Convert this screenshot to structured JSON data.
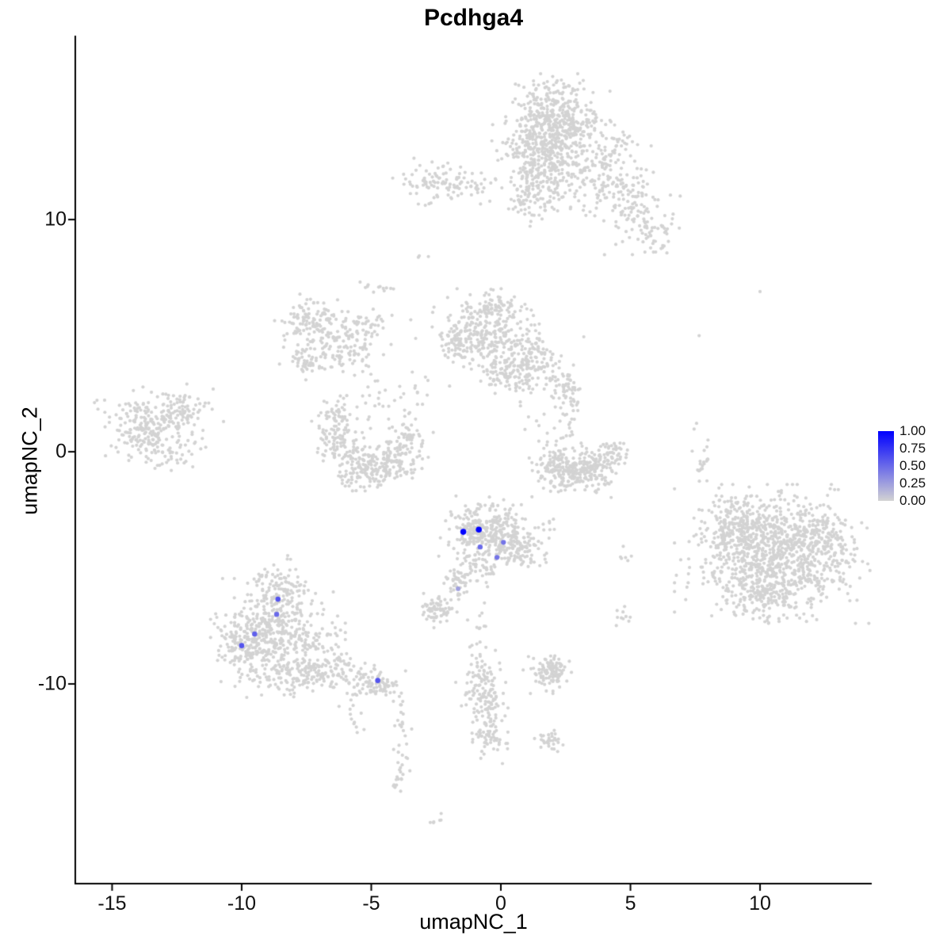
{
  "title": "Pcdhga4",
  "axes": {
    "x_label": "umapNC_1",
    "y_label": "umapNC_2",
    "x_ticks": [
      -15,
      -10,
      -5,
      0,
      5,
      10
    ],
    "x_tick_labels": [
      "-15",
      "-10",
      "-5",
      "0",
      "5",
      "10"
    ],
    "y_ticks": [
      -10,
      0,
      10
    ],
    "y_tick_labels": [
      "-10",
      "0",
      "10"
    ]
  },
  "legend": {
    "labels": [
      "1.00",
      "0.75",
      "0.50",
      "0.25",
      "0.00"
    ],
    "high_color": "#0000FF",
    "low_color": "#D3D3D3"
  },
  "chart_data": {
    "type": "scatter",
    "title": "Pcdhga4",
    "xlabel": "umapNC_1",
    "ylabel": "umapNC_2",
    "xlim": [
      -16.42,
      14.31
    ],
    "ylim": [
      -18.6,
      17.92
    ],
    "grid": false,
    "legend_position": "right",
    "point_color": "#D3D3D3",
    "highlight_low_color": "#D3D3D3",
    "highlight_high_color": "#0000FF",
    "seed": 42,
    "clusters": [
      {
        "name": "top-main-core",
        "cx": 2.0,
        "cy": 14.2,
        "sx": 0.85,
        "sy": 0.8,
        "n": 480
      },
      {
        "name": "top-main-lower",
        "cx": 1.55,
        "cy": 12.4,
        "sx": 0.75,
        "sy": 0.85,
        "n": 260
      },
      {
        "name": "top-neck",
        "cx": 1.25,
        "cy": 10.9,
        "sx": 0.4,
        "sy": 0.5,
        "n": 70
      },
      {
        "name": "top-right-arm",
        "cx": 3.9,
        "cy": 11.9,
        "sx": 0.85,
        "sy": 0.8,
        "n": 150
      },
      {
        "name": "top-right-sparse",
        "cx": 5.1,
        "cy": 10.4,
        "sx": 0.7,
        "sy": 0.8,
        "n": 90
      },
      {
        "name": "top-right-tip",
        "cx": 5.9,
        "cy": 9.4,
        "sx": 0.45,
        "sy": 0.5,
        "n": 40
      },
      {
        "name": "top-right-upper",
        "cx": 4.5,
        "cy": 13.1,
        "sx": 0.5,
        "sy": 0.5,
        "n": 30
      },
      {
        "name": "top-left-blob",
        "cx": -2.5,
        "cy": 11.6,
        "sx": 0.75,
        "sy": 0.4,
        "n": 90
      },
      {
        "name": "top-left-bridge",
        "cx": -1.0,
        "cy": 11.3,
        "sx": 0.4,
        "sy": 0.3,
        "n": 25
      },
      {
        "name": "mid-upper-dots",
        "cx": -4.7,
        "cy": 7.1,
        "sx": 0.3,
        "sy": 0.25,
        "n": 12
      },
      {
        "name": "pair-dots",
        "cx": -3.0,
        "cy": 8.4,
        "sx": 0.15,
        "sy": 0.1,
        "n": 3
      },
      {
        "name": "left-ring-a",
        "cx": -7.3,
        "cy": 5.6,
        "sx": 0.55,
        "sy": 0.5,
        "n": 120
      },
      {
        "name": "left-ring-b",
        "cx": -6.1,
        "cy": 4.6,
        "sx": 0.5,
        "sy": 0.55,
        "n": 100
      },
      {
        "name": "left-ring-c",
        "cx": -7.5,
        "cy": 3.9,
        "sx": 0.4,
        "sy": 0.35,
        "n": 50
      },
      {
        "name": "left-ring-d",
        "cx": -5.2,
        "cy": 5.4,
        "sx": 0.45,
        "sy": 0.3,
        "n": 40
      },
      {
        "name": "center-sparse-trail",
        "cx": -4.2,
        "cy": 2.3,
        "sx": 1.0,
        "sy": 1.3,
        "n": 55
      },
      {
        "name": "center-top-main",
        "cx": -0.6,
        "cy": 5.2,
        "sx": 0.8,
        "sy": 0.7,
        "n": 280
      },
      {
        "name": "center-top-right",
        "cx": 1.1,
        "cy": 3.9,
        "sx": 0.6,
        "sy": 0.6,
        "n": 160
      },
      {
        "name": "center-top-lower",
        "cx": 0.1,
        "cy": 3.3,
        "sx": 0.5,
        "sy": 0.4,
        "n": 70
      },
      {
        "name": "center-top-left-tail",
        "cx": -1.9,
        "cy": 4.5,
        "sx": 0.35,
        "sy": 0.4,
        "n": 40
      },
      {
        "name": "center-top-upper",
        "cx": -0.2,
        "cy": 6.3,
        "sx": 0.6,
        "sy": 0.35,
        "n": 40
      },
      {
        "name": "midleft-crescent-a",
        "cx": -6.2,
        "cy": 0.6,
        "sx": 0.45,
        "sy": 0.7,
        "n": 110
      },
      {
        "name": "midleft-crescent-b",
        "cx": -5.3,
        "cy": -0.6,
        "sx": 0.55,
        "sy": 0.45,
        "n": 130
      },
      {
        "name": "midleft-crescent-c",
        "cx": -4.1,
        "cy": -0.55,
        "sx": 0.5,
        "sy": 0.4,
        "n": 100
      },
      {
        "name": "midleft-crescent-tip",
        "cx": -3.5,
        "cy": 0.6,
        "sx": 0.3,
        "sy": 0.4,
        "n": 40
      },
      {
        "name": "midleft-crescent-tip2",
        "cx": -6.6,
        "cy": 1.6,
        "sx": 0.3,
        "sy": 0.3,
        "n": 30
      },
      {
        "name": "far-left-main",
        "cx": -13.6,
        "cy": 1.1,
        "sx": 0.8,
        "sy": 0.65,
        "n": 220
      },
      {
        "name": "far-left-right",
        "cx": -12.3,
        "cy": 1.7,
        "sx": 0.5,
        "sy": 0.5,
        "n": 70
      },
      {
        "name": "far-left-bottom",
        "cx": -13.1,
        "cy": -0.1,
        "sx": 0.7,
        "sy": 0.35,
        "n": 40
      },
      {
        "name": "right-string",
        "cx": 2.6,
        "cy": 1.7,
        "sx": 0.3,
        "sy": 0.9,
        "n": 50
      },
      {
        "name": "right-string-top",
        "cx": 2.45,
        "cy": 2.9,
        "sx": 0.3,
        "sy": 0.3,
        "n": 30
      },
      {
        "name": "right-crescent-a",
        "cx": 2.5,
        "cy": -0.9,
        "sx": 0.5,
        "sy": 0.4,
        "n": 140
      },
      {
        "name": "right-crescent-b",
        "cx": 3.6,
        "cy": -0.8,
        "sx": 0.5,
        "sy": 0.45,
        "n": 130
      },
      {
        "name": "right-crescent-tip",
        "cx": 4.4,
        "cy": -0.1,
        "sx": 0.25,
        "sy": 0.35,
        "n": 40
      },
      {
        "name": "right-crescent-left",
        "cx": 1.9,
        "cy": -0.3,
        "sx": 0.25,
        "sy": 0.3,
        "n": 40
      },
      {
        "name": "center-right-sparse",
        "cx": 1.5,
        "cy": 1.2,
        "sx": 0.5,
        "sy": 0.8,
        "n": 12
      },
      {
        "name": "big-right-core",
        "cx": 10.6,
        "cy": -4.4,
        "sx": 1.5,
        "sy": 1.15,
        "n": 850
      },
      {
        "name": "big-right-upperleft",
        "cx": 9.2,
        "cy": -3.2,
        "sx": 0.7,
        "sy": 0.7,
        "n": 200
      },
      {
        "name": "big-right-right",
        "cx": 12.2,
        "cy": -3.7,
        "sx": 0.7,
        "sy": 0.7,
        "n": 150
      },
      {
        "name": "big-right-bottom",
        "cx": 10.2,
        "cy": -6.3,
        "sx": 0.9,
        "sy": 0.5,
        "n": 140
      },
      {
        "name": "big-right-top-string",
        "cx": 7.8,
        "cy": -0.3,
        "sx": 0.2,
        "sy": 0.9,
        "n": 22
      },
      {
        "name": "center-main",
        "cx": -0.5,
        "cy": -3.4,
        "sx": 0.75,
        "sy": 0.6,
        "n": 320
      },
      {
        "name": "center-right-lobe",
        "cx": 0.8,
        "cy": -4.2,
        "sx": 0.4,
        "sy": 0.45,
        "n": 90
      },
      {
        "name": "center-bottom",
        "cx": -1.0,
        "cy": -5.0,
        "sx": 0.4,
        "sy": 0.45,
        "n": 70
      },
      {
        "name": "center-tail",
        "cx": -1.7,
        "cy": -5.85,
        "sx": 0.25,
        "sy": 0.35,
        "n": 30
      },
      {
        "name": "center-right-dots",
        "cx": 1.8,
        "cy": -3.4,
        "sx": 0.25,
        "sy": 0.4,
        "n": 10
      },
      {
        "name": "small-left-blob",
        "cx": -2.4,
        "cy": -6.8,
        "sx": 0.35,
        "sy": 0.3,
        "n": 70
      },
      {
        "name": "bottomleft-core",
        "cx": -8.6,
        "cy": -7.8,
        "sx": 1.0,
        "sy": 0.9,
        "n": 430
      },
      {
        "name": "bottomleft-top",
        "cx": -8.6,
        "cy": -5.9,
        "sx": 0.45,
        "sy": 0.55,
        "n": 90
      },
      {
        "name": "bottomleft-left",
        "cx": -9.9,
        "cy": -8.3,
        "sx": 0.5,
        "sy": 0.6,
        "n": 120
      },
      {
        "name": "bottomleft-bottom",
        "cx": -8.3,
        "cy": -9.6,
        "sx": 0.7,
        "sy": 0.4,
        "n": 90
      },
      {
        "name": "bottomleft-armstart",
        "cx": -6.8,
        "cy": -9.3,
        "sx": 0.6,
        "sy": 0.45,
        "n": 90
      },
      {
        "name": "bottomleft-arm",
        "cx": -5.4,
        "cy": -9.9,
        "sx": 0.55,
        "sy": 0.3,
        "n": 55
      },
      {
        "name": "bottomleft-armknot",
        "cx": -4.6,
        "cy": -10.1,
        "sx": 0.3,
        "sy": 0.25,
        "n": 40
      },
      {
        "name": "tail-string",
        "cx": -3.9,
        "cy": -12.3,
        "sx": 0.18,
        "sy": 1.1,
        "n": 32
      },
      {
        "name": "tail-endblob",
        "cx": -3.9,
        "cy": -13.9,
        "sx": 0.15,
        "sy": 0.3,
        "n": 12
      },
      {
        "name": "tail-side-dots",
        "cx": -5.7,
        "cy": -11.3,
        "sx": 0.3,
        "sy": 0.5,
        "n": 14
      },
      {
        "name": "bottom-middle-a",
        "cx": -0.7,
        "cy": -10.5,
        "sx": 0.4,
        "sy": 0.5,
        "n": 85
      },
      {
        "name": "bottom-middle-b",
        "cx": -0.4,
        "cy": -12.0,
        "sx": 0.35,
        "sy": 0.55,
        "n": 80
      },
      {
        "name": "bottom-middle-top",
        "cx": -0.8,
        "cy": -9.3,
        "sx": 0.3,
        "sy": 0.3,
        "n": 25
      },
      {
        "name": "center-lower-string",
        "cx": -0.7,
        "cy": -7.9,
        "sx": 0.25,
        "sy": 0.7,
        "n": 18
      },
      {
        "name": "bottom-right-blob",
        "cx": 1.9,
        "cy": -9.5,
        "sx": 0.4,
        "sy": 0.35,
        "n": 110
      },
      {
        "name": "bottom-right-small",
        "cx": 1.95,
        "cy": -12.4,
        "sx": 0.25,
        "sy": 0.2,
        "n": 32
      },
      {
        "name": "right-lower-dots",
        "cx": 4.7,
        "cy": -7.1,
        "sx": 0.2,
        "sy": 0.3,
        "n": 10
      },
      {
        "name": "right-lower-dots2",
        "cx": 4.8,
        "cy": -4.9,
        "sx": 0.15,
        "sy": 0.4,
        "n": 6
      },
      {
        "name": "bottom-tiny-blob",
        "cx": -2.6,
        "cy": -15.8,
        "sx": 0.2,
        "sy": 0.15,
        "n": 6
      }
    ],
    "singles": [
      [
        -11.1,
        2.7
      ],
      [
        -10.7,
        1.3
      ],
      [
        7.65,
        5.0
      ],
      [
        10.0,
        6.9
      ],
      [
        3.2,
        4.95
      ]
    ],
    "highlighted_points": [
      {
        "x": -1.45,
        "y": -3.45,
        "value": 1.0
      },
      {
        "x": -0.85,
        "y": -3.35,
        "value": 1.0
      },
      {
        "x": -0.8,
        "y": -4.1,
        "value": 0.5
      },
      {
        "x": -0.15,
        "y": -4.55,
        "value": 0.45
      },
      {
        "x": 0.1,
        "y": -3.9,
        "value": 0.45
      },
      {
        "x": -1.65,
        "y": -5.9,
        "value": 0.25
      },
      {
        "x": -8.6,
        "y": -6.35,
        "value": 0.6
      },
      {
        "x": -8.65,
        "y": -7.0,
        "value": 0.5
      },
      {
        "x": -9.5,
        "y": -7.85,
        "value": 0.55
      },
      {
        "x": -10.0,
        "y": -8.35,
        "value": 0.6
      },
      {
        "x": -4.75,
        "y": -9.85,
        "value": 0.6
      }
    ]
  }
}
